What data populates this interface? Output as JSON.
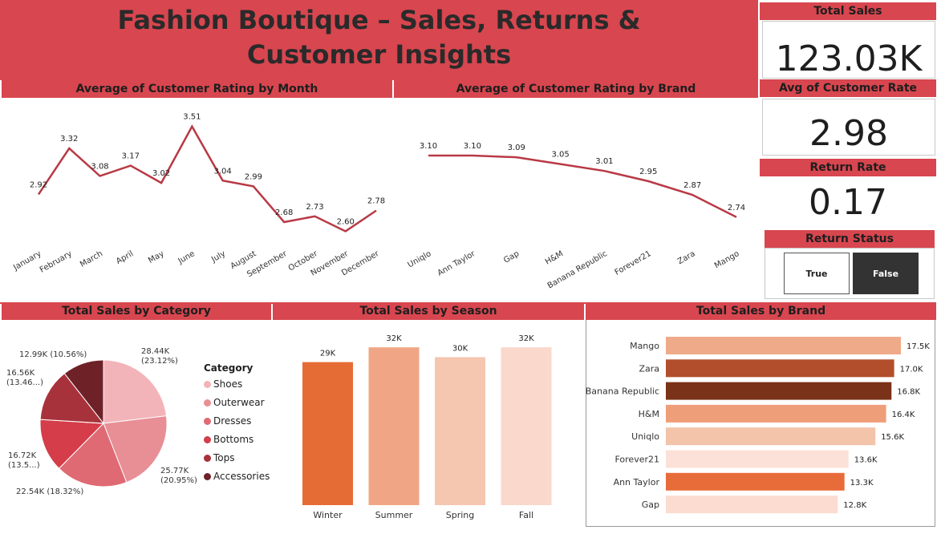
{
  "page_title_line1": "Fashion Boutique – Sales, Returns &",
  "page_title_line2": "Customer Insights",
  "kpis": {
    "total_sales": {
      "label": "Total Sales",
      "value": "123.03K"
    },
    "avg_customer_rate": {
      "label": "Avg of Customer Rate",
      "value": "2.98"
    },
    "return_rate": {
      "label": "Return Rate",
      "value": "0.17"
    }
  },
  "return_status": {
    "label": "Return Status",
    "options": [
      "True",
      "False"
    ],
    "selected": "False"
  },
  "colors": {
    "header_red": "#d8464f",
    "line": "#b83a45",
    "selected_dark": "#333333"
  },
  "chart_data": [
    {
      "type": "line",
      "title": "Average of Customer Rating by Month",
      "categories": [
        "January",
        "February",
        "March",
        "April",
        "May",
        "June",
        "July",
        "August",
        "September",
        "October",
        "November",
        "December"
      ],
      "values": [
        2.92,
        3.32,
        3.08,
        3.17,
        3.02,
        3.51,
        3.04,
        2.99,
        2.68,
        2.73,
        2.6,
        2.78
      ],
      "labels": [
        "2.92",
        "3.32",
        "3.08",
        "3.17",
        "3.02",
        "3.51",
        "3.04",
        "2.99",
        "2.68",
        "2.73",
        "2.60",
        "2.78"
      ],
      "ylim": [
        2.45,
        3.55
      ]
    },
    {
      "type": "line",
      "title": "Average of Customer Rating by Brand",
      "categories": [
        "Uniqlo",
        "Ann Taylor",
        "Gap",
        "H&M",
        "Banana Republic",
        "Forever21",
        "Zara",
        "Mango"
      ],
      "values": [
        3.1,
        3.1,
        3.09,
        3.05,
        3.01,
        2.95,
        2.87,
        2.74
      ],
      "labels": [
        "3.10",
        "3.10",
        "3.09",
        "3.05",
        "3.01",
        "2.95",
        "2.87",
        "2.74"
      ],
      "ylim": [
        2.65,
        3.25
      ]
    },
    {
      "type": "pie",
      "title": "Total Sales by Category",
      "legend_title": "Category",
      "categories": [
        "Shoes",
        "Outerwear",
        "Dresses",
        "Bottoms",
        "Tops",
        "Accessories"
      ],
      "values": [
        28.44,
        25.77,
        22.54,
        16.72,
        16.56,
        12.99
      ],
      "colors": [
        "#f2b4b9",
        "#e88f96",
        "#df6a73",
        "#d43d49",
        "#a8323b",
        "#6e2228"
      ],
      "labels": [
        [
          "28.44K",
          "(23.12%)"
        ],
        [
          "25.77K",
          "(20.95%)"
        ],
        [
          "22.54K (18.32%)"
        ],
        [
          "16.72K",
          "(13.5...)"
        ],
        [
          "16.56K",
          "(13.46...)"
        ],
        [
          "12.99K (10.56%)"
        ]
      ]
    },
    {
      "type": "bar",
      "title": "Total Sales by Season",
      "categories": [
        "Winter",
        "Summer",
        "Spring",
        "Fall"
      ],
      "values": [
        29,
        32,
        30,
        32
      ],
      "labels": [
        "29K",
        "32K",
        "30K",
        "32K"
      ],
      "colors": [
        "#e66c35",
        "#f0a684",
        "#f5c6b0",
        "#fad8cc"
      ],
      "ylim": [
        0,
        33
      ]
    },
    {
      "type": "bar",
      "orientation": "horizontal",
      "title": "Total Sales by Brand",
      "categories": [
        "Mango",
        "Zara",
        "Banana Republic",
        "H&M",
        "Uniqlo",
        "Forever21",
        "Ann Taylor",
        "Gap"
      ],
      "values": [
        17.5,
        17.0,
        16.8,
        16.4,
        15.6,
        13.6,
        13.3,
        12.8
      ],
      "labels": [
        "17.5K",
        "17.0K",
        "16.8K",
        "16.4K",
        "15.6K",
        "13.6K",
        "13.3K",
        "12.8K"
      ],
      "colors": [
        "#efaa8a",
        "#b24e2b",
        "#7a3218",
        "#ee9e78",
        "#f3c3aa",
        "#fbe1d7",
        "#e86c3a",
        "#fcdcd0"
      ],
      "xlim": [
        0,
        17.5
      ]
    }
  ]
}
